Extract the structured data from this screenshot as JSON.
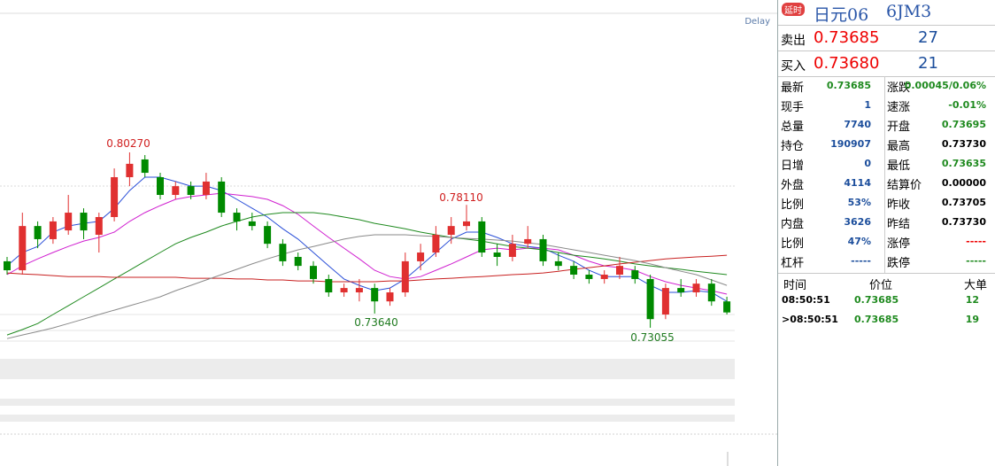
{
  "chart_data": {
    "type": "candlestick",
    "ylim": [
      0.7196,
      0.8581
    ],
    "up_color": "#e03030",
    "down_color": "#008a00",
    "delay_label": "Delay",
    "annotations": [
      "0.80270",
      "0.78110",
      "0.73640",
      "0.73055"
    ],
    "candles": [
      [
        0.7579,
        0.7597,
        0.7524,
        0.7542
      ],
      [
        0.7542,
        0.7779,
        0.7524,
        0.7724
      ],
      [
        0.7724,
        0.7743,
        0.7633,
        0.767
      ],
      [
        0.767,
        0.7761,
        0.7651,
        0.7743
      ],
      [
        0.7706,
        0.7852,
        0.7688,
        0.7779
      ],
      [
        0.7779,
        0.7797,
        0.767,
        0.7706
      ],
      [
        0.7688,
        0.7779,
        0.7615,
        0.7761
      ],
      [
        0.7761,
        0.7961,
        0.7743,
        0.7925
      ],
      [
        0.7925,
        0.8027,
        0.7888,
        0.798
      ],
      [
        0.7998,
        0.8016,
        0.7925,
        0.7943
      ],
      [
        0.7925,
        0.7943,
        0.7834,
        0.7852
      ],
      [
        0.7852,
        0.7907,
        0.7834,
        0.7888
      ],
      [
        0.7888,
        0.7907,
        0.7834,
        0.7852
      ],
      [
        0.7852,
        0.7943,
        0.7834,
        0.7907
      ],
      [
        0.7907,
        0.7925,
        0.7761,
        0.7779
      ],
      [
        0.7779,
        0.7797,
        0.7706,
        0.7743
      ],
      [
        0.7743,
        0.7779,
        0.7706,
        0.7724
      ],
      [
        0.7724,
        0.7743,
        0.7633,
        0.7651
      ],
      [
        0.7651,
        0.767,
        0.756,
        0.7579
      ],
      [
        0.7597,
        0.7615,
        0.7542,
        0.756
      ],
      [
        0.756,
        0.7579,
        0.7487,
        0.7506
      ],
      [
        0.7506,
        0.7524,
        0.7433,
        0.7451
      ],
      [
        0.7451,
        0.7487,
        0.7433,
        0.7469
      ],
      [
        0.7451,
        0.7506,
        0.7414,
        0.7469
      ],
      [
        0.7469,
        0.7487,
        0.7364,
        0.7414
      ],
      [
        0.7414,
        0.7469,
        0.7396,
        0.7451
      ],
      [
        0.7451,
        0.7615,
        0.7433,
        0.7579
      ],
      [
        0.7579,
        0.7651,
        0.7542,
        0.7615
      ],
      [
        0.7615,
        0.7724,
        0.7597,
        0.7688
      ],
      [
        0.7688,
        0.7761,
        0.7651,
        0.7724
      ],
      [
        0.7724,
        0.7811,
        0.7706,
        0.7743
      ],
      [
        0.7743,
        0.7761,
        0.7597,
        0.7615
      ],
      [
        0.7615,
        0.7651,
        0.756,
        0.7597
      ],
      [
        0.7597,
        0.7688,
        0.7579,
        0.7651
      ],
      [
        0.7651,
        0.7724,
        0.7633,
        0.767
      ],
      [
        0.767,
        0.7688,
        0.756,
        0.7579
      ],
      [
        0.7579,
        0.7615,
        0.7542,
        0.756
      ],
      [
        0.756,
        0.7579,
        0.7506,
        0.7524
      ],
      [
        0.7524,
        0.7542,
        0.7487,
        0.7506
      ],
      [
        0.7506,
        0.7542,
        0.7487,
        0.7524
      ],
      [
        0.7524,
        0.7597,
        0.7506,
        0.756
      ],
      [
        0.7542,
        0.756,
        0.7487,
        0.7506
      ],
      [
        0.7506,
        0.7524,
        0.73055,
        0.7341
      ],
      [
        0.736,
        0.7487,
        0.7341,
        0.7469
      ],
      [
        0.7469,
        0.7506,
        0.7433,
        0.7451
      ],
      [
        0.7451,
        0.7506,
        0.7433,
        0.7487
      ],
      [
        0.7487,
        0.7506,
        0.7396,
        0.7414
      ],
      [
        0.7414,
        0.7433,
        0.736,
        0.73685
      ]
    ],
    "series": [
      {
        "color": "#2a4fd8",
        "values": [
          0.756,
          0.7615,
          0.764,
          0.7699,
          0.7724,
          0.7735,
          0.7743,
          0.7797,
          0.787,
          0.7925,
          0.7925,
          0.7907,
          0.7888,
          0.7888,
          0.787,
          0.7834,
          0.7797,
          0.7761,
          0.7713,
          0.767,
          0.7615,
          0.756,
          0.7506,
          0.748,
          0.7458,
          0.7469,
          0.7506,
          0.756,
          0.7615,
          0.767,
          0.7699,
          0.7699,
          0.7677,
          0.7651,
          0.764,
          0.7633,
          0.7604,
          0.7579,
          0.7542,
          0.7516,
          0.7516,
          0.7516,
          0.748,
          0.7451,
          0.7451,
          0.7458,
          0.7451,
          0.7414
        ]
      },
      {
        "color": "#d020d0",
        "values": [
          0.7524,
          0.756,
          0.7589,
          0.7615,
          0.764,
          0.7662,
          0.7677,
          0.7699,
          0.7743,
          0.7779,
          0.7808,
          0.7834,
          0.7845,
          0.7852,
          0.7859,
          0.7852,
          0.7845,
          0.7834,
          0.7808,
          0.7772,
          0.7724,
          0.7677,
          0.7633,
          0.7589,
          0.7542,
          0.7516,
          0.7506,
          0.7516,
          0.7542,
          0.7568,
          0.7597,
          0.7626,
          0.7633,
          0.7626,
          0.7633,
          0.7633,
          0.7626,
          0.7604,
          0.7579,
          0.756,
          0.7553,
          0.7542,
          0.7516,
          0.7495,
          0.748,
          0.7469,
          0.7458,
          0.7444
        ]
      },
      {
        "color": "#1f8a1f",
        "values": [
          0.7276,
          0.7298,
          0.7323,
          0.736,
          0.7396,
          0.7433,
          0.7469,
          0.7506,
          0.7542,
          0.7579,
          0.7615,
          0.7651,
          0.7677,
          0.7699,
          0.7724,
          0.7743,
          0.7761,
          0.7772,
          0.7779,
          0.7779,
          0.7779,
          0.7772,
          0.7761,
          0.775,
          0.7735,
          0.7724,
          0.7713,
          0.7699,
          0.7688,
          0.7677,
          0.767,
          0.7662,
          0.7651,
          0.764,
          0.7633,
          0.7626,
          0.7615,
          0.7604,
          0.7597,
          0.7589,
          0.7579,
          0.7568,
          0.756,
          0.7553,
          0.7546,
          0.7538,
          0.7531,
          0.7524
        ]
      },
      {
        "color": "#c82020",
        "values": [
          0.7531,
          0.7527,
          0.7524,
          0.752,
          0.7516,
          0.7516,
          0.7516,
          0.7513,
          0.7513,
          0.7513,
          0.7513,
          0.7513,
          0.7509,
          0.7509,
          0.7509,
          0.7506,
          0.7506,
          0.7502,
          0.7502,
          0.7498,
          0.7498,
          0.7495,
          0.7495,
          0.7495,
          0.7495,
          0.7498,
          0.7498,
          0.7502,
          0.7506,
          0.7509,
          0.7513,
          0.7516,
          0.752,
          0.7524,
          0.7527,
          0.7531,
          0.7538,
          0.7546,
          0.7553,
          0.756,
          0.7568,
          0.7575,
          0.7582,
          0.7589,
          0.7593,
          0.7597,
          0.76,
          0.7604
        ]
      },
      {
        "color": "#8a8a8a",
        "values": [
          0.7261,
          0.7276,
          0.729,
          0.7305,
          0.7323,
          0.7341,
          0.736,
          0.7378,
          0.7396,
          0.7414,
          0.7433,
          0.7458,
          0.748,
          0.7502,
          0.7524,
          0.7546,
          0.7568,
          0.7589,
          0.7608,
          0.7626,
          0.764,
          0.7655,
          0.767,
          0.7681,
          0.7688,
          0.7688,
          0.7688,
          0.7684,
          0.7681,
          0.7677,
          0.7673,
          0.767,
          0.7666,
          0.7662,
          0.7655,
          0.7648,
          0.7637,
          0.7626,
          0.7615,
          0.7604,
          0.7593,
          0.7582,
          0.7568,
          0.7553,
          0.7538,
          0.7524,
          0.7502,
          0.748
        ]
      }
    ]
  },
  "quote": {
    "badge": "延时",
    "name": "日元06",
    "code": "6JM3",
    "sell": {
      "label": "卖出",
      "price": "0.73685",
      "qty": "27"
    },
    "buy": {
      "label": "买入",
      "price": "0.73680",
      "qty": "21"
    },
    "rows": [
      [
        "最新",
        "0.73685",
        "涨跌",
        "0.00045/0.06%"
      ],
      [
        "现手",
        "1",
        "速涨",
        "-0.01%"
      ],
      [
        "总量",
        "7740",
        "开盘",
        "0.73695"
      ],
      [
        "持仓",
        "190907",
        "最高",
        "0.73730"
      ],
      [
        "日增",
        "0",
        "最低",
        "0.73635"
      ],
      [
        "外盘",
        "4114",
        "结算价",
        "0.00000"
      ],
      [
        "比例",
        "53%",
        "昨收",
        "0.73705"
      ],
      [
        "内盘",
        "3626",
        "昨结",
        "0.73730"
      ],
      [
        "比例",
        "47%",
        "涨停",
        "-----"
      ],
      [
        "杠杆",
        "-----",
        "跌停",
        "-----"
      ]
    ]
  },
  "trades": {
    "header": [
      "时间",
      "价位",
      "大单"
    ],
    "rows": [
      [
        "08:50:51",
        "0.73685",
        "12"
      ],
      [
        ">08:50:51",
        "0.73685",
        "19"
      ]
    ]
  }
}
